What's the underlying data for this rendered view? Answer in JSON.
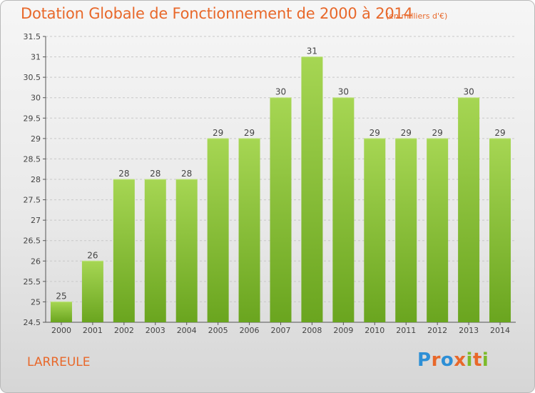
{
  "header": {
    "title": "Dotation Globale de Fonctionnement de 2000 à 2014",
    "subtitle": "(en milliers d'€)"
  },
  "footer": {
    "commune": "LARREULE",
    "brand": "Proxiti"
  },
  "colors": {
    "accent": "#e8682a",
    "bar_top": "#a6d653",
    "bar_bottom": "#6aa51f",
    "grid": "#c8c8c8"
  },
  "chart_data": {
    "type": "bar",
    "categories": [
      "2000",
      "2001",
      "2002",
      "2003",
      "2004",
      "2005",
      "2006",
      "2007",
      "2008",
      "2009",
      "2010",
      "2011",
      "2012",
      "2013",
      "2014"
    ],
    "values": [
      25,
      26,
      28,
      28,
      28,
      29,
      29,
      30,
      31,
      30,
      29,
      29,
      29,
      30,
      29
    ],
    "ylim": [
      24.5,
      31.5
    ],
    "yticks": [
      "24.5",
      "25",
      "25.5",
      "26",
      "26.5",
      "27",
      "27.5",
      "28",
      "28.5",
      "29",
      "29.5",
      "30",
      "30.5",
      "31",
      "31.5"
    ],
    "grid": true,
    "legend": "none"
  }
}
